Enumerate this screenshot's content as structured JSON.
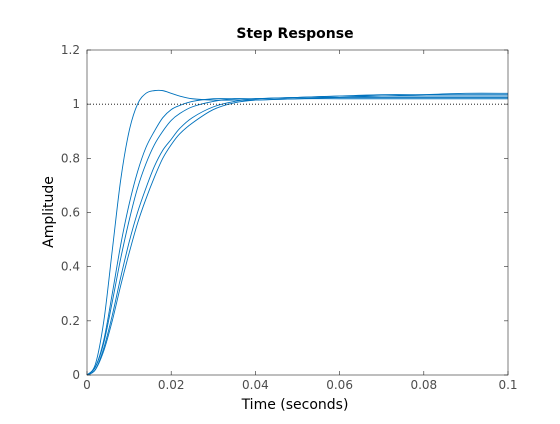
{
  "chart_data": {
    "type": "line",
    "title": "Step Response",
    "xlabel": "Time (seconds)",
    "ylabel": "Amplitude",
    "xlim": [
      0,
      0.1
    ],
    "ylim": [
      0,
      1.2
    ],
    "x_ticks": [
      0,
      0.02,
      0.04,
      0.06,
      0.08,
      0.1
    ],
    "x_tick_labels": [
      "0",
      "0.02",
      "0.04",
      "0.06",
      "0.08",
      "0.1"
    ],
    "y_ticks": [
      0,
      0.2,
      0.4,
      0.6,
      0.8,
      1,
      1.2
    ],
    "y_tick_labels": [
      "0",
      "0.2",
      "0.4",
      "0.6",
      "0.8",
      "1",
      "1.2"
    ],
    "grid": false,
    "legend": "none",
    "line_color": "#0072BD",
    "reference_line": {
      "y": 1.0,
      "style": "dotted",
      "color": "#000000"
    },
    "series": [
      {
        "x": [
          0,
          0.002,
          0.004,
          0.006,
          0.008,
          0.01,
          0.012,
          0.014,
          0.016,
          0.018,
          0.02,
          0.022,
          0.025,
          0.03,
          0.035,
          0.04,
          0.05,
          0.06,
          0.07,
          0.08,
          0.09,
          0.1
        ],
        "values": [
          0,
          0.04,
          0.2,
          0.46,
          0.72,
          0.9,
          1.0,
          1.04,
          1.05,
          1.05,
          1.04,
          1.03,
          1.02,
          1.015,
          1.015,
          1.015,
          1.02,
          1.02,
          1.02,
          1.02,
          1.02,
          1.02
        ]
      },
      {
        "x": [
          0,
          0.002,
          0.004,
          0.006,
          0.008,
          0.01,
          0.012,
          0.014,
          0.016,
          0.018,
          0.02,
          0.022,
          0.025,
          0.03,
          0.035,
          0.04,
          0.05,
          0.06,
          0.07,
          0.08,
          0.09,
          0.1
        ],
        "values": [
          0,
          0.03,
          0.13,
          0.3,
          0.48,
          0.63,
          0.75,
          0.84,
          0.9,
          0.95,
          0.98,
          0.995,
          1.01,
          1.02,
          1.02,
          1.02,
          1.025,
          1.025,
          1.025,
          1.025,
          1.025,
          1.025
        ]
      },
      {
        "x": [
          0,
          0.002,
          0.004,
          0.006,
          0.008,
          0.01,
          0.012,
          0.014,
          0.016,
          0.018,
          0.02,
          0.022,
          0.025,
          0.03,
          0.035,
          0.04,
          0.05,
          0.06,
          0.07,
          0.08,
          0.09,
          0.1
        ],
        "values": [
          0,
          0.03,
          0.12,
          0.27,
          0.43,
          0.57,
          0.69,
          0.78,
          0.85,
          0.9,
          0.94,
          0.965,
          0.99,
          1.01,
          1.02,
          1.02,
          1.025,
          1.03,
          1.03,
          1.03,
          1.03,
          1.03
        ]
      },
      {
        "x": [
          0,
          0.002,
          0.004,
          0.006,
          0.008,
          0.01,
          0.012,
          0.014,
          0.016,
          0.018,
          0.02,
          0.022,
          0.025,
          0.03,
          0.035,
          0.04,
          0.05,
          0.06,
          0.07,
          0.08,
          0.09,
          0.1
        ],
        "values": [
          0,
          0.02,
          0.1,
          0.22,
          0.36,
          0.49,
          0.6,
          0.69,
          0.77,
          0.83,
          0.87,
          0.91,
          0.95,
          0.99,
          1.01,
          1.02,
          1.025,
          1.03,
          1.035,
          1.035,
          1.035,
          1.035
        ]
      },
      {
        "x": [
          0,
          0.002,
          0.004,
          0.006,
          0.008,
          0.01,
          0.012,
          0.014,
          0.016,
          0.018,
          0.02,
          0.022,
          0.025,
          0.03,
          0.035,
          0.04,
          0.05,
          0.06,
          0.07,
          0.08,
          0.09,
          0.1
        ],
        "values": [
          0,
          0.02,
          0.09,
          0.2,
          0.33,
          0.45,
          0.56,
          0.65,
          0.73,
          0.8,
          0.85,
          0.89,
          0.93,
          0.98,
          1.005,
          1.015,
          1.02,
          1.025,
          1.03,
          1.035,
          1.04,
          1.04
        ]
      }
    ]
  }
}
